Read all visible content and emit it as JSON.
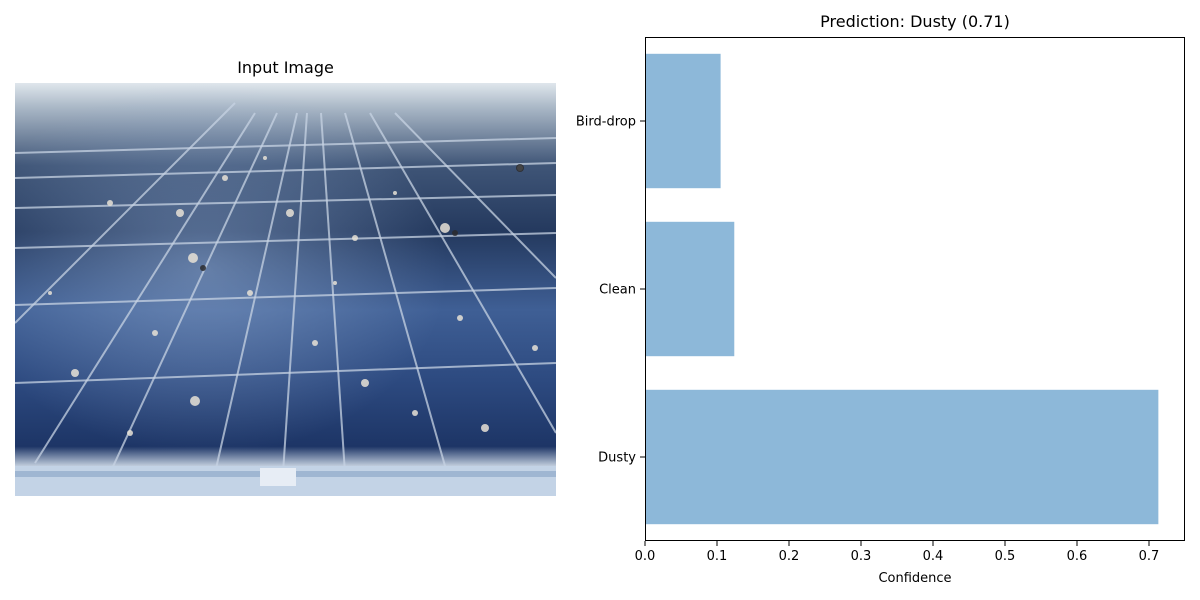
{
  "left_panel": {
    "title": "Input Image"
  },
  "chart_data": {
    "type": "bar",
    "orientation": "horizontal",
    "title": "Prediction: Dusty (0.71)",
    "xlabel": "Confidence",
    "ylabel": "",
    "categories": [
      "Dusty",
      "Clean",
      "Bird-drop"
    ],
    "values": [
      0.713,
      0.124,
      0.105
    ],
    "xlim": [
      0,
      0.75
    ],
    "xticks": [
      0.0,
      0.1,
      0.2,
      0.3,
      0.4,
      0.5,
      0.6,
      0.7
    ],
    "xtick_labels": [
      "0.0",
      "0.1",
      "0.2",
      "0.3",
      "0.4",
      "0.5",
      "0.6",
      "0.7"
    ],
    "bar_color": "#8db8d9",
    "grid": false,
    "legend": "none"
  }
}
